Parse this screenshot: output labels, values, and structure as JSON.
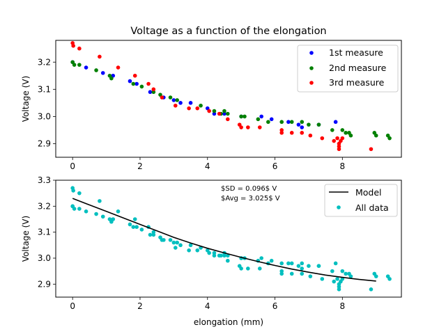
{
  "chart_data": [
    {
      "type": "scatter",
      "title": "Voltage as a function of the elongation",
      "xlabel": "",
      "ylabel": "Voltage (V)",
      "xlim": [
        -0.5,
        9.75
      ],
      "ylim": [
        2.85,
        3.28
      ],
      "xticks": [
        "0",
        "2",
        "4",
        "6",
        "8"
      ],
      "yticks": [
        "2.9",
        "3.0",
        "3.1",
        "3.2"
      ],
      "legend_position": "top-right",
      "series": [
        {
          "name": "1st measure",
          "color": "#0000ff",
          "points": [
            [
              0.0,
              3.2
            ],
            [
              0.4,
              3.18
            ],
            [
              0.9,
              3.16
            ],
            [
              1.2,
              3.15
            ],
            [
              1.7,
              3.13
            ],
            [
              1.9,
              3.12
            ],
            [
              2.3,
              3.09
            ],
            [
              2.7,
              3.07
            ],
            [
              3.0,
              3.06
            ],
            [
              3.2,
              3.05
            ],
            [
              3.5,
              3.05
            ],
            [
              4.0,
              3.03
            ],
            [
              4.2,
              3.01
            ],
            [
              4.5,
              3.01
            ],
            [
              5.0,
              3.0
            ],
            [
              5.6,
              3.0
            ],
            [
              5.9,
              2.99
            ],
            [
              6.4,
              2.98
            ],
            [
              6.7,
              2.97
            ],
            [
              6.8,
              2.96
            ],
            [
              7.3,
              2.97
            ],
            [
              7.8,
              2.98
            ]
          ]
        },
        {
          "name": "2nd measure",
          "color": "#008000",
          "points": [
            [
              0.0,
              3.2
            ],
            [
              0.05,
              3.19
            ],
            [
              0.2,
              3.19
            ],
            [
              0.7,
              3.17
            ],
            [
              1.1,
              3.15
            ],
            [
              1.15,
              3.14
            ],
            [
              1.8,
              3.12
            ],
            [
              2.05,
              3.11
            ],
            [
              2.4,
              3.09
            ],
            [
              2.6,
              3.08
            ],
            [
              2.9,
              3.07
            ],
            [
              3.1,
              3.06
            ],
            [
              3.8,
              3.04
            ],
            [
              4.2,
              3.02
            ],
            [
              4.4,
              3.01
            ],
            [
              4.5,
              3.02
            ],
            [
              4.6,
              3.01
            ],
            [
              5.0,
              3.0
            ],
            [
              5.1,
              3.0
            ],
            [
              5.5,
              2.99
            ],
            [
              5.8,
              2.98
            ],
            [
              6.2,
              2.98
            ],
            [
              6.5,
              2.98
            ],
            [
              6.8,
              2.98
            ],
            [
              7.0,
              2.97
            ],
            [
              7.3,
              2.97
            ],
            [
              7.7,
              2.95
            ],
            [
              8.0,
              2.95
            ],
            [
              8.1,
              2.94
            ],
            [
              8.2,
              2.94
            ],
            [
              8.25,
              2.93
            ],
            [
              8.95,
              2.94
            ],
            [
              9.0,
              2.93
            ],
            [
              9.35,
              2.93
            ],
            [
              9.4,
              2.92
            ]
          ]
        },
        {
          "name": "3rd measure",
          "color": "#ff0000",
          "points": [
            [
              0.0,
              3.27
            ],
            [
              0.02,
              3.26
            ],
            [
              0.2,
              3.25
            ],
            [
              0.8,
              3.22
            ],
            [
              1.35,
              3.18
            ],
            [
              1.85,
              3.15
            ],
            [
              2.25,
              3.12
            ],
            [
              2.4,
              3.1
            ],
            [
              2.65,
              3.07
            ],
            [
              3.05,
              3.04
            ],
            [
              3.45,
              3.03
            ],
            [
              3.7,
              3.03
            ],
            [
              4.05,
              3.02
            ],
            [
              4.35,
              3.01
            ],
            [
              4.6,
              2.99
            ],
            [
              4.95,
              2.97
            ],
            [
              5.0,
              2.96
            ],
            [
              5.2,
              2.96
            ],
            [
              5.55,
              2.96
            ],
            [
              6.2,
              2.95
            ],
            [
              6.2,
              2.94
            ],
            [
              6.5,
              2.94
            ],
            [
              6.8,
              2.94
            ],
            [
              7.05,
              2.93
            ],
            [
              7.4,
              2.92
            ],
            [
              7.75,
              2.91
            ],
            [
              7.85,
              2.92
            ],
            [
              7.9,
              2.9
            ],
            [
              7.9,
              2.89
            ],
            [
              7.9,
              2.88
            ],
            [
              7.95,
              2.91
            ],
            [
              8.0,
              2.92
            ],
            [
              8.85,
              2.88
            ]
          ]
        }
      ]
    },
    {
      "type": "scatter",
      "title": "",
      "xlabel": "elongation (mm)",
      "ylabel": "Voltage (V)",
      "xlim": [
        -0.5,
        9.75
      ],
      "ylim": [
        2.85,
        3.3
      ],
      "xticks": [
        "0",
        "2",
        "4",
        "6",
        "8"
      ],
      "yticks": [
        "2.9",
        "3.0",
        "3.1",
        "3.2",
        "3.3"
      ],
      "legend_position": "top-right",
      "annotations": [
        "$SD = 0.096$ V",
        "$Avg = 3.025$ V"
      ],
      "model": {
        "name": "Model",
        "color": "#000000",
        "points": [
          [
            0.0,
            3.23
          ],
          [
            0.5,
            3.205
          ],
          [
            1.0,
            3.18
          ],
          [
            1.5,
            3.155
          ],
          [
            2.0,
            3.13
          ],
          [
            2.5,
            3.105
          ],
          [
            3.0,
            3.08
          ],
          [
            3.5,
            3.058
          ],
          [
            4.0,
            3.038
          ],
          [
            4.5,
            3.02
          ],
          [
            5.0,
            3.003
          ],
          [
            5.5,
            2.987
          ],
          [
            6.0,
            2.972
          ],
          [
            6.5,
            2.958
          ],
          [
            7.0,
            2.946
          ],
          [
            7.5,
            2.935
          ],
          [
            8.0,
            2.926
          ],
          [
            8.5,
            2.918
          ],
          [
            9.0,
            2.912
          ]
        ]
      },
      "scatter": {
        "name": "All data",
        "color": "#00bfbf"
      }
    }
  ]
}
